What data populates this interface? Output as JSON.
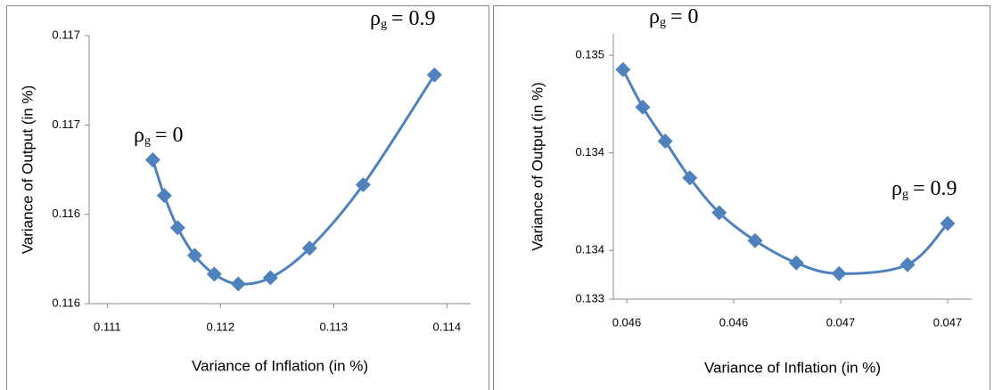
{
  "chart_data": [
    {
      "type": "line",
      "xlabel": "Variance of Inflation (in %)",
      "ylabel": "Variance of Output (in %)",
      "x": [
        0.111402,
        0.111504,
        0.111622,
        0.111772,
        0.111945,
        0.112157,
        0.112441,
        0.112787,
        0.11326,
        0.11389
      ],
      "series": [
        {
          "color": "#4f81bd",
          "values": [
            0.116444,
            0.116284,
            0.11614,
            0.116016,
            0.115932,
            0.115888,
            0.115916,
            0.116048,
            0.116332,
            0.116824
          ]
        }
      ],
      "xlim": [
        0.11084,
        0.11421
      ],
      "ylim": [
        0.1158,
        0.117
      ],
      "xticks": [
        0.111,
        0.112,
        0.113,
        0.114
      ],
      "yticks": [
        {
          "value": 0.1158,
          "label": "0.116"
        },
        {
          "value": 0.1162,
          "label": "0.116"
        },
        {
          "value": 0.1166,
          "label": "0.117"
        },
        {
          "value": 0.117,
          "label": "0.117"
        }
      ],
      "annotations": [
        {
          "symbol": "ρ",
          "sub": "g",
          "text": "= 0"
        },
        {
          "symbol": "ρ",
          "sub": "g",
          "text": "= 0.9"
        }
      ]
    },
    {
      "type": "line",
      "xlabel": "Variance of Inflation (in %)",
      "ylabel": "Variance of Output (in %)",
      "x": [
        0.046193,
        0.04623,
        0.046272,
        0.046318,
        0.046373,
        0.04644,
        0.046517,
        0.046597,
        0.046725,
        0.0468
      ],
      "series": [
        {
          "color": "#4f81bd",
          "values": [
            0.134427,
            0.134234,
            0.13406,
            0.133872,
            0.133693,
            0.13355,
            0.133436,
            0.133381,
            0.133427,
            0.133638
          ]
        }
      ],
      "xlim": [
        0.046175,
        0.046845
      ],
      "ylim": [
        0.13325,
        0.13461
      ],
      "xticks": [
        {
          "value": 0.0462,
          "label": "0.046"
        },
        {
          "value": 0.0464,
          "label": "0.046"
        },
        {
          "value": 0.0466,
          "label": "0.047"
        },
        {
          "value": 0.0468,
          "label": "0.047"
        }
      ],
      "yticks": [
        {
          "value": 0.13325,
          "label": "0.133"
        },
        {
          "value": 0.1335,
          "label": "0.134"
        },
        {
          "value": 0.134,
          "label": "0.134"
        },
        {
          "value": 0.1345,
          "label": "0.135"
        }
      ],
      "annotations": [
        {
          "symbol": "ρ",
          "sub": "g",
          "text": "= 0"
        },
        {
          "symbol": "ρ",
          "sub": "g",
          "text": "= 0.9"
        }
      ]
    }
  ]
}
